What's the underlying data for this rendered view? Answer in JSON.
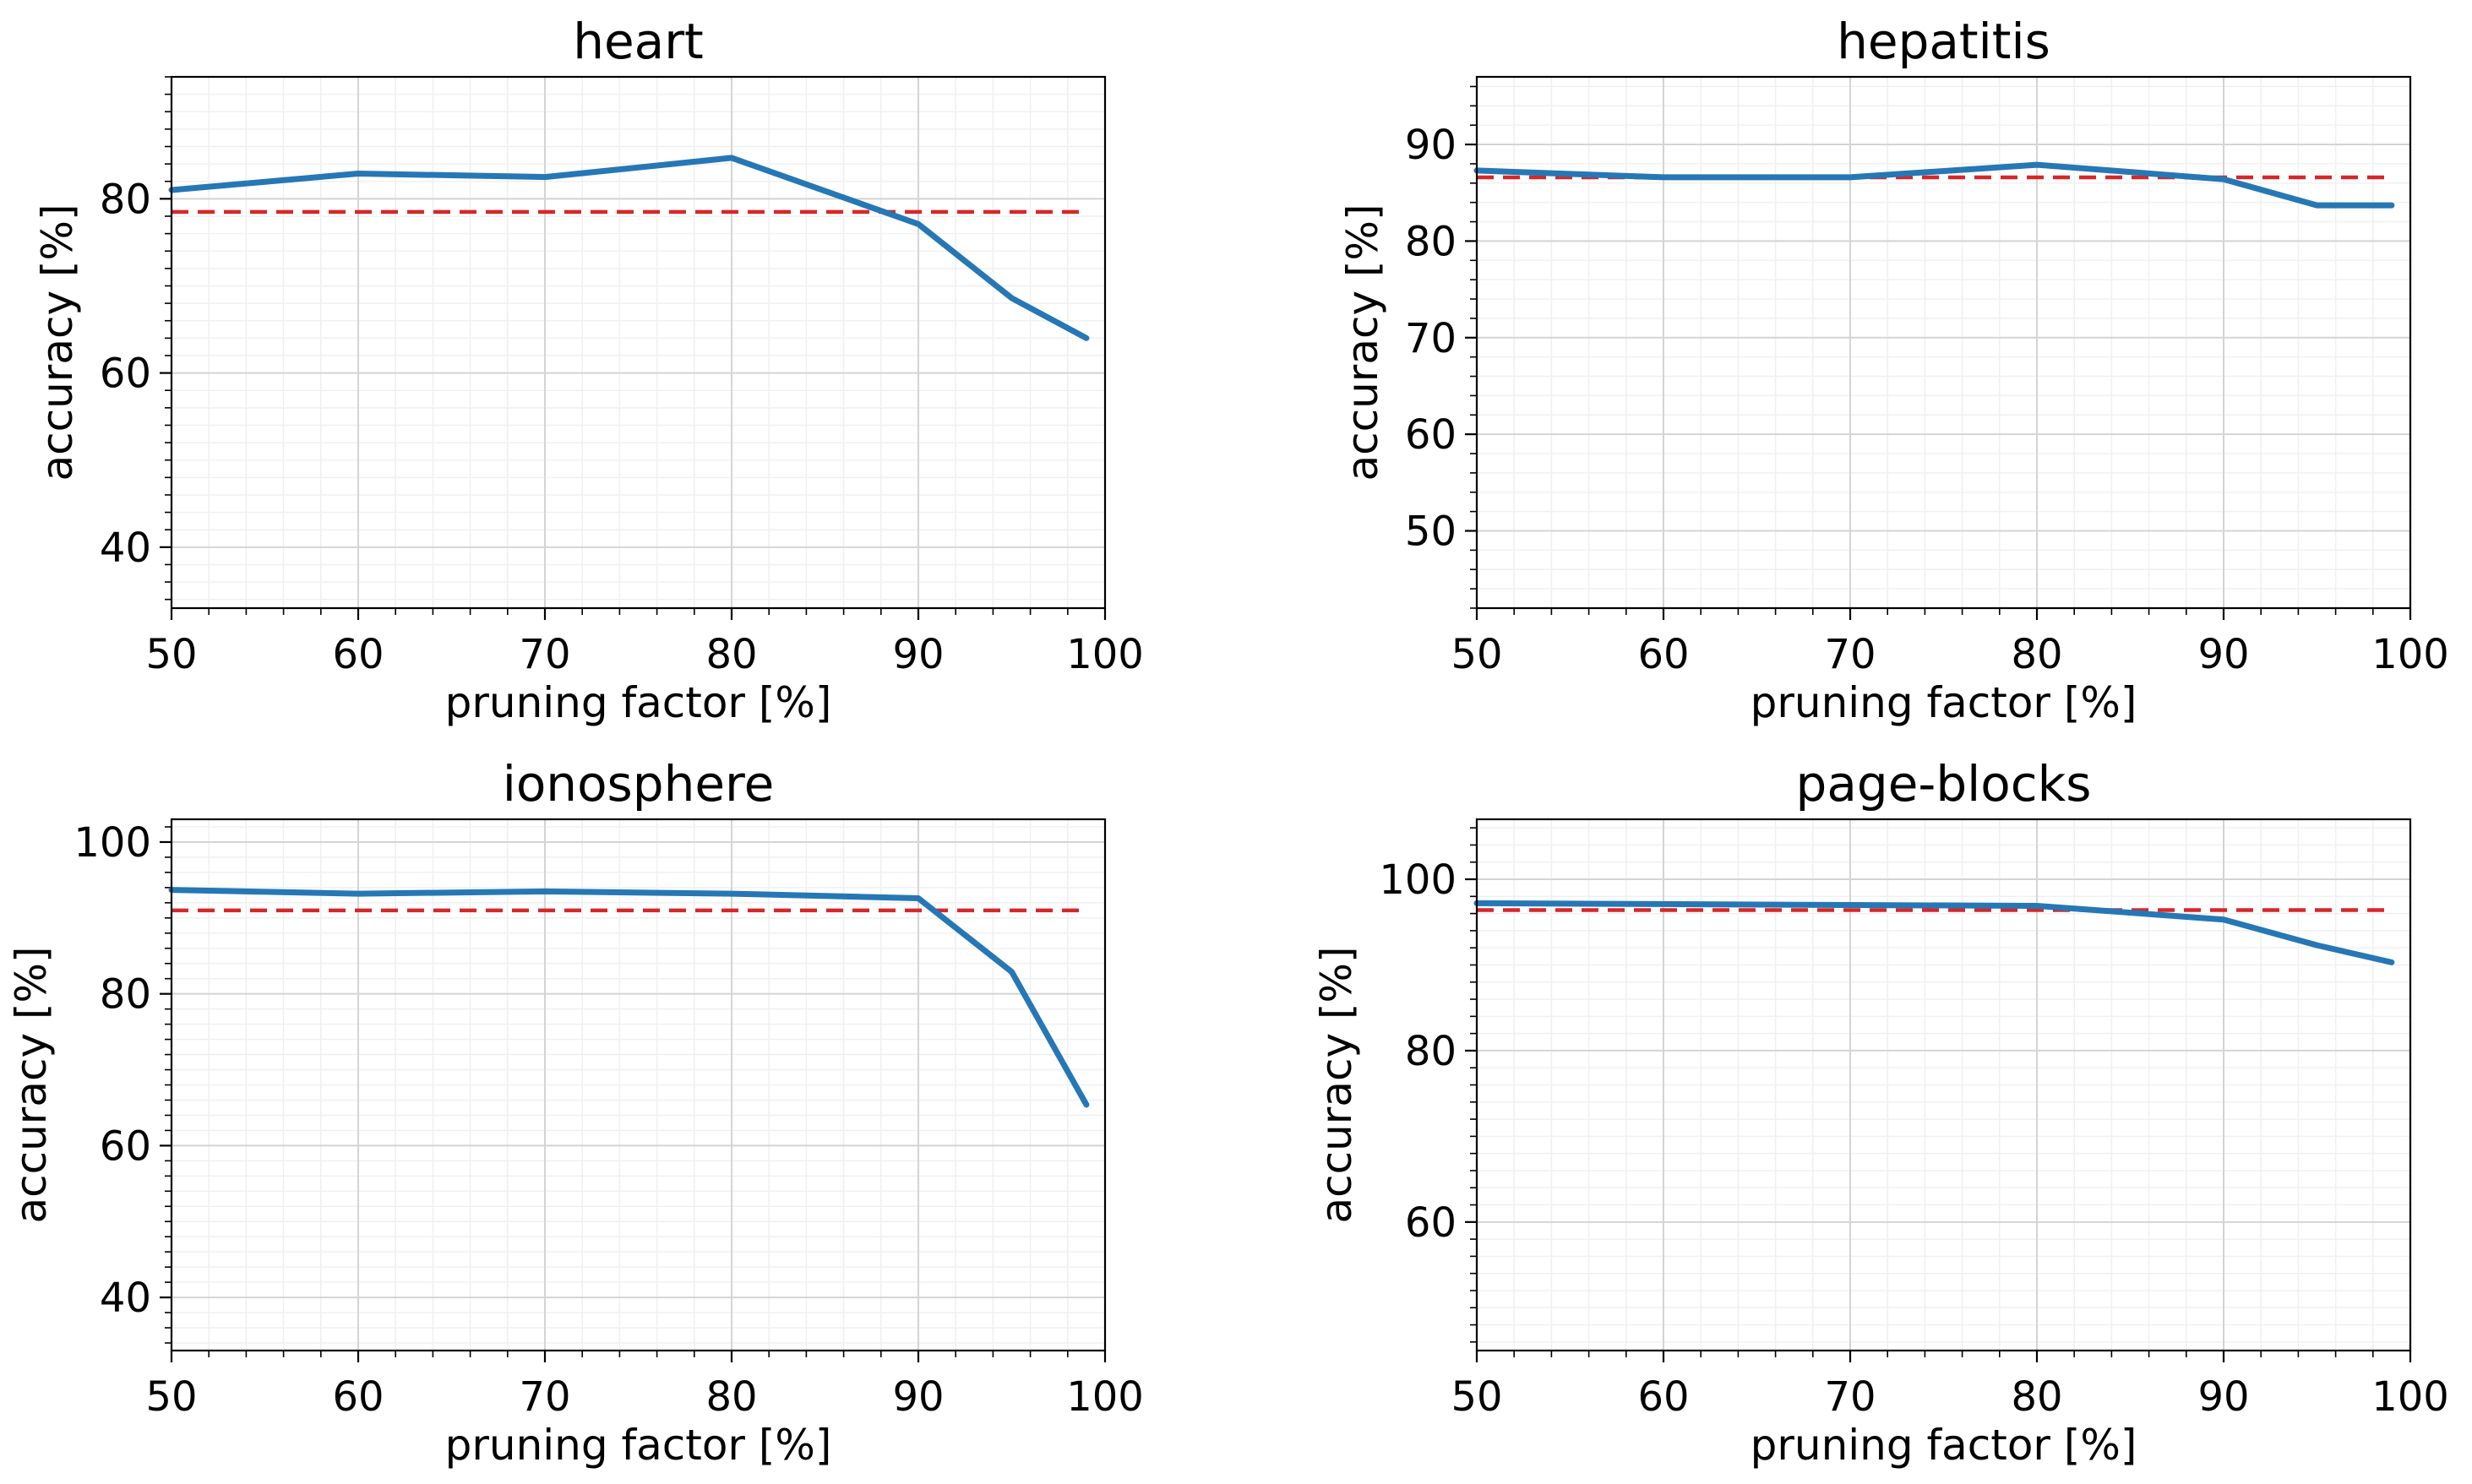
{
  "colors": {
    "accuracy_line": "#2677b5",
    "baseline": "#d62728"
  },
  "chart_data": [
    {
      "type": "line",
      "title": "heart",
      "xlabel": "pruning factor [%]",
      "ylabel": "accuracy [%]",
      "xlim": [
        50,
        100
      ],
      "ylim": [
        33,
        94
      ],
      "xticks": [
        50,
        60,
        70,
        80,
        90,
        100
      ],
      "yticks": [
        40,
        60,
        80
      ],
      "x": [
        50,
        60,
        70,
        80,
        90,
        95,
        99
      ],
      "series": [
        {
          "name": "accuracy",
          "values": [
            81.0,
            82.9,
            82.5,
            84.7,
            77.1,
            68.6,
            64.0
          ]
        }
      ],
      "baseline": 78.5,
      "grid": true
    },
    {
      "type": "line",
      "title": "hepatitis",
      "xlabel": "pruning factor [%]",
      "ylabel": "accuracy [%]",
      "xlim": [
        50,
        100
      ],
      "ylim": [
        42,
        97
      ],
      "xticks": [
        50,
        60,
        70,
        80,
        90,
        100
      ],
      "yticks": [
        50,
        60,
        70,
        80,
        90
      ],
      "x": [
        50,
        60,
        70,
        80,
        90,
        95,
        99
      ],
      "series": [
        {
          "name": "accuracy",
          "values": [
            87.3,
            86.6,
            86.6,
            87.9,
            86.4,
            83.7,
            83.7
          ]
        }
      ],
      "baseline": 86.6,
      "grid": true
    },
    {
      "type": "line",
      "title": "ionosphere",
      "xlabel": "pruning factor [%]",
      "ylabel": "accuracy [%]",
      "xlim": [
        50,
        100
      ],
      "ylim": [
        33,
        103
      ],
      "xticks": [
        50,
        60,
        70,
        80,
        90,
        100
      ],
      "yticks": [
        40,
        60,
        80,
        100
      ],
      "x": [
        50,
        60,
        70,
        80,
        90,
        95,
        99
      ],
      "series": [
        {
          "name": "accuracy",
          "values": [
            93.7,
            93.2,
            93.5,
            93.2,
            92.6,
            82.9,
            65.4
          ]
        }
      ],
      "baseline": 91.0,
      "grid": true
    },
    {
      "type": "line",
      "title": "page-blocks",
      "xlabel": "pruning factor [%]",
      "ylabel": "accuracy [%]",
      "xlim": [
        50,
        100
      ],
      "ylim": [
        45,
        107
      ],
      "xticks": [
        50,
        60,
        70,
        80,
        90,
        100
      ],
      "yticks": [
        60,
        80,
        100
      ],
      "x": [
        50,
        60,
        70,
        80,
        90,
        95,
        99
      ],
      "series": [
        {
          "name": "accuracy",
          "values": [
            97.2,
            97.1,
            97.0,
            96.9,
            95.3,
            92.3,
            90.3
          ]
        }
      ],
      "baseline": 96.4,
      "grid": true
    }
  ]
}
